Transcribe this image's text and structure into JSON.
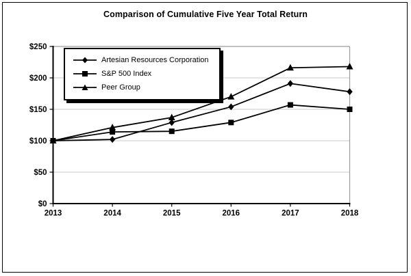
{
  "title": "Comparison of Cumulative Five Year Total Return",
  "colors": {
    "series_line": "#000000",
    "gridline": "#c9c9c9",
    "plot_border": "#9b9b9b",
    "axis": "#000000",
    "background": "#ffffff"
  },
  "legend": {
    "position": "top-left-inside",
    "items": [
      {
        "label": "Artesian Resources Corporation",
        "marker": "diamond-marker-icon"
      },
      {
        "label": "S&P 500 Index",
        "marker": "square-marker-icon"
      },
      {
        "label": "Peer Group",
        "marker": "triangle-marker-icon"
      }
    ]
  },
  "chart_data": {
    "type": "line",
    "title": "Comparison of Cumulative Five Year Total Return",
    "xlabel": "",
    "ylabel": "",
    "categories": [
      "2013",
      "2014",
      "2015",
      "2016",
      "2017",
      "2018"
    ],
    "series": [
      {
        "name": "Artesian Resources Corporation",
        "marker": "diamond",
        "values": [
          100,
          102,
          129,
          154,
          191,
          178
        ]
      },
      {
        "name": "S&P 500 Index",
        "marker": "square",
        "values": [
          100,
          114,
          115,
          129,
          157,
          150
        ]
      },
      {
        "name": "Peer Group",
        "marker": "triangle",
        "values": [
          100,
          121,
          137,
          170,
          216,
          218
        ]
      }
    ],
    "ylim": [
      0,
      250
    ],
    "ytick_step": 50,
    "ytick_labels": [
      "$0",
      "$50",
      "$100",
      "$150",
      "$200",
      "$250"
    ],
    "grid": true,
    "legend_position": "top-left-inside"
  }
}
